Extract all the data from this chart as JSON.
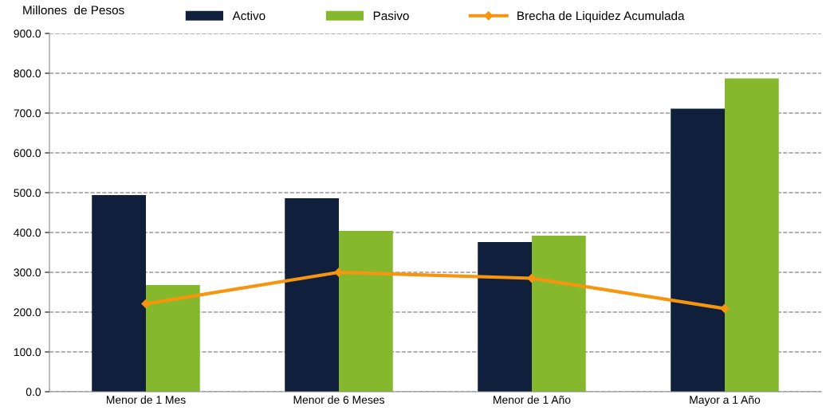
{
  "chart_data": {
    "type": "bar",
    "ylabel": "Millones  de Pesos",
    "categories": [
      "Menor de 1 Mes",
      "Menor de 6 Meses",
      "Menor de 1 Año",
      "Mayor a 1 Año"
    ],
    "series": [
      {
        "name": "Activo",
        "color": "#0f1f3c",
        "values": [
          494,
          486,
          376,
          711
        ]
      },
      {
        "name": "Pasivo",
        "color": "#86b82e",
        "values": [
          268,
          404,
          392,
          787
        ]
      },
      {
        "name": "Brecha de Liquidez Acumulada",
        "type": "line",
        "color": "#f7950f",
        "marker": "diamond",
        "values": [
          221,
          300,
          285,
          209
        ]
      }
    ],
    "ylim": [
      0,
      900
    ],
    "yticks": [
      {
        "value": 0,
        "label": "0.0"
      },
      {
        "value": 100,
        "label": "100.0"
      },
      {
        "value": 200,
        "label": "200.0"
      },
      {
        "value": 300,
        "label": "300.0"
      },
      {
        "value": 400,
        "label": "400.0"
      },
      {
        "value": 500,
        "label": "500.0"
      },
      {
        "value": 600,
        "label": "600.0"
      },
      {
        "value": 700,
        "label": "700.0"
      },
      {
        "value": 800,
        "label": "800.0"
      },
      {
        "value": 900,
        "label": "900.0"
      }
    ],
    "grid": "y",
    "legend": "top"
  }
}
